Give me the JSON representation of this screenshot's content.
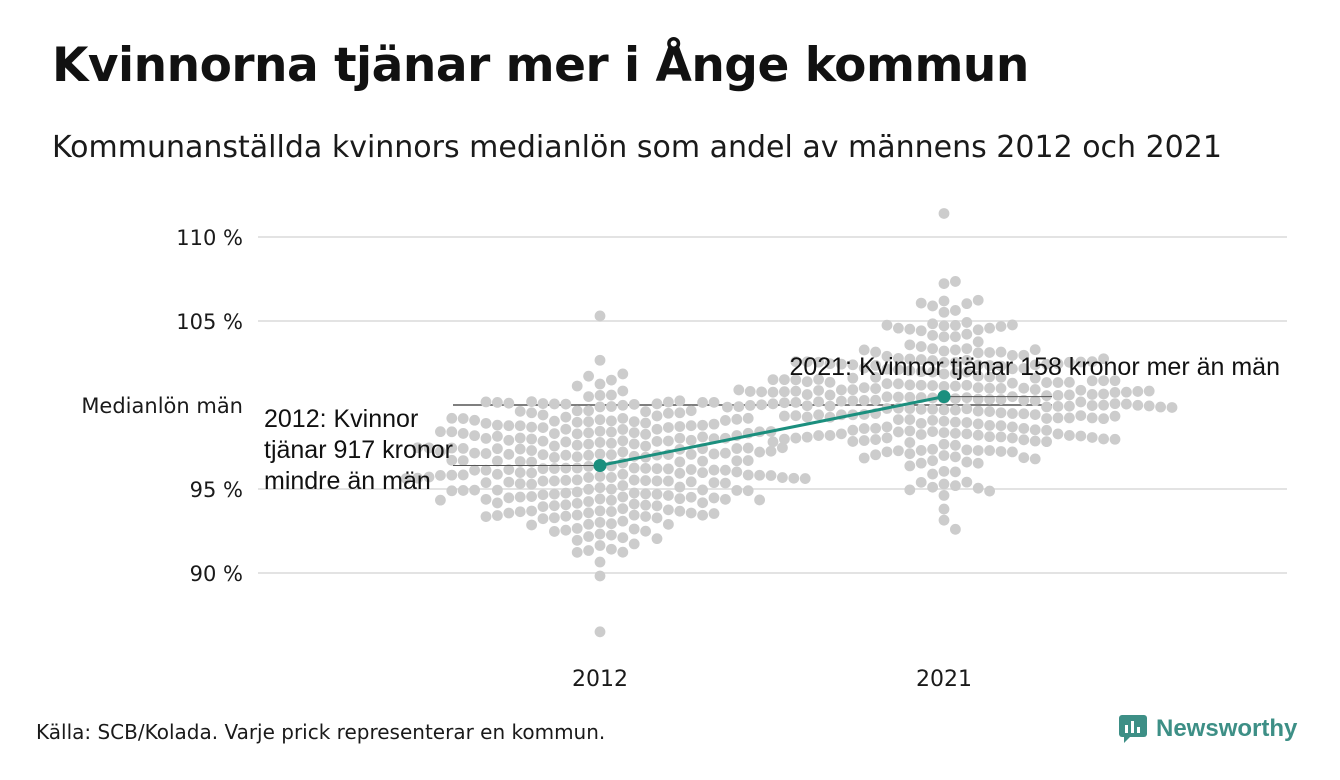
{
  "title": "Kvinnorna tjänar mer i Ånge kommun",
  "subtitle": "Kommunanställda kvinnors medianlön som andel av männens 2012 och 2021",
  "source": "Källa: SCB/Kolada. Varje prick representerar en kommun.",
  "brand": "Newsworthy",
  "colors": {
    "dots": "#cccccc",
    "highlight": "#1b8f7e",
    "grid": "#e3e3e3",
    "reference": "#333333",
    "brand": "#3d8f86"
  },
  "chart_data": {
    "type": "scatter",
    "subtype": "beeswarm",
    "categories": [
      "2012",
      "2021"
    ],
    "ylim": [
      86.5,
      111.5
    ],
    "yticks": [
      90,
      95,
      105,
      110
    ],
    "ytick_labels": [
      "90 %",
      "95 %",
      "105 %",
      "110 %"
    ],
    "reference_line": {
      "value": 100,
      "label": "Medianlön män"
    },
    "highlight": {
      "name": "Ånge",
      "values": [
        96.4,
        100.5
      ],
      "annotations": [
        "2012: Kvinnor tjänar 917 kronor mindre än män",
        "2021: Kvinnor tjänar 158 kronor mer än män"
      ]
    },
    "distributions": [
      {
        "category": "2012",
        "min": 86.5,
        "max": 105.3,
        "median": 96.4,
        "count": 290
      },
      {
        "category": "2021",
        "min": 92.6,
        "max": 111.4,
        "median": 100.4,
        "count": 290
      }
    ]
  }
}
